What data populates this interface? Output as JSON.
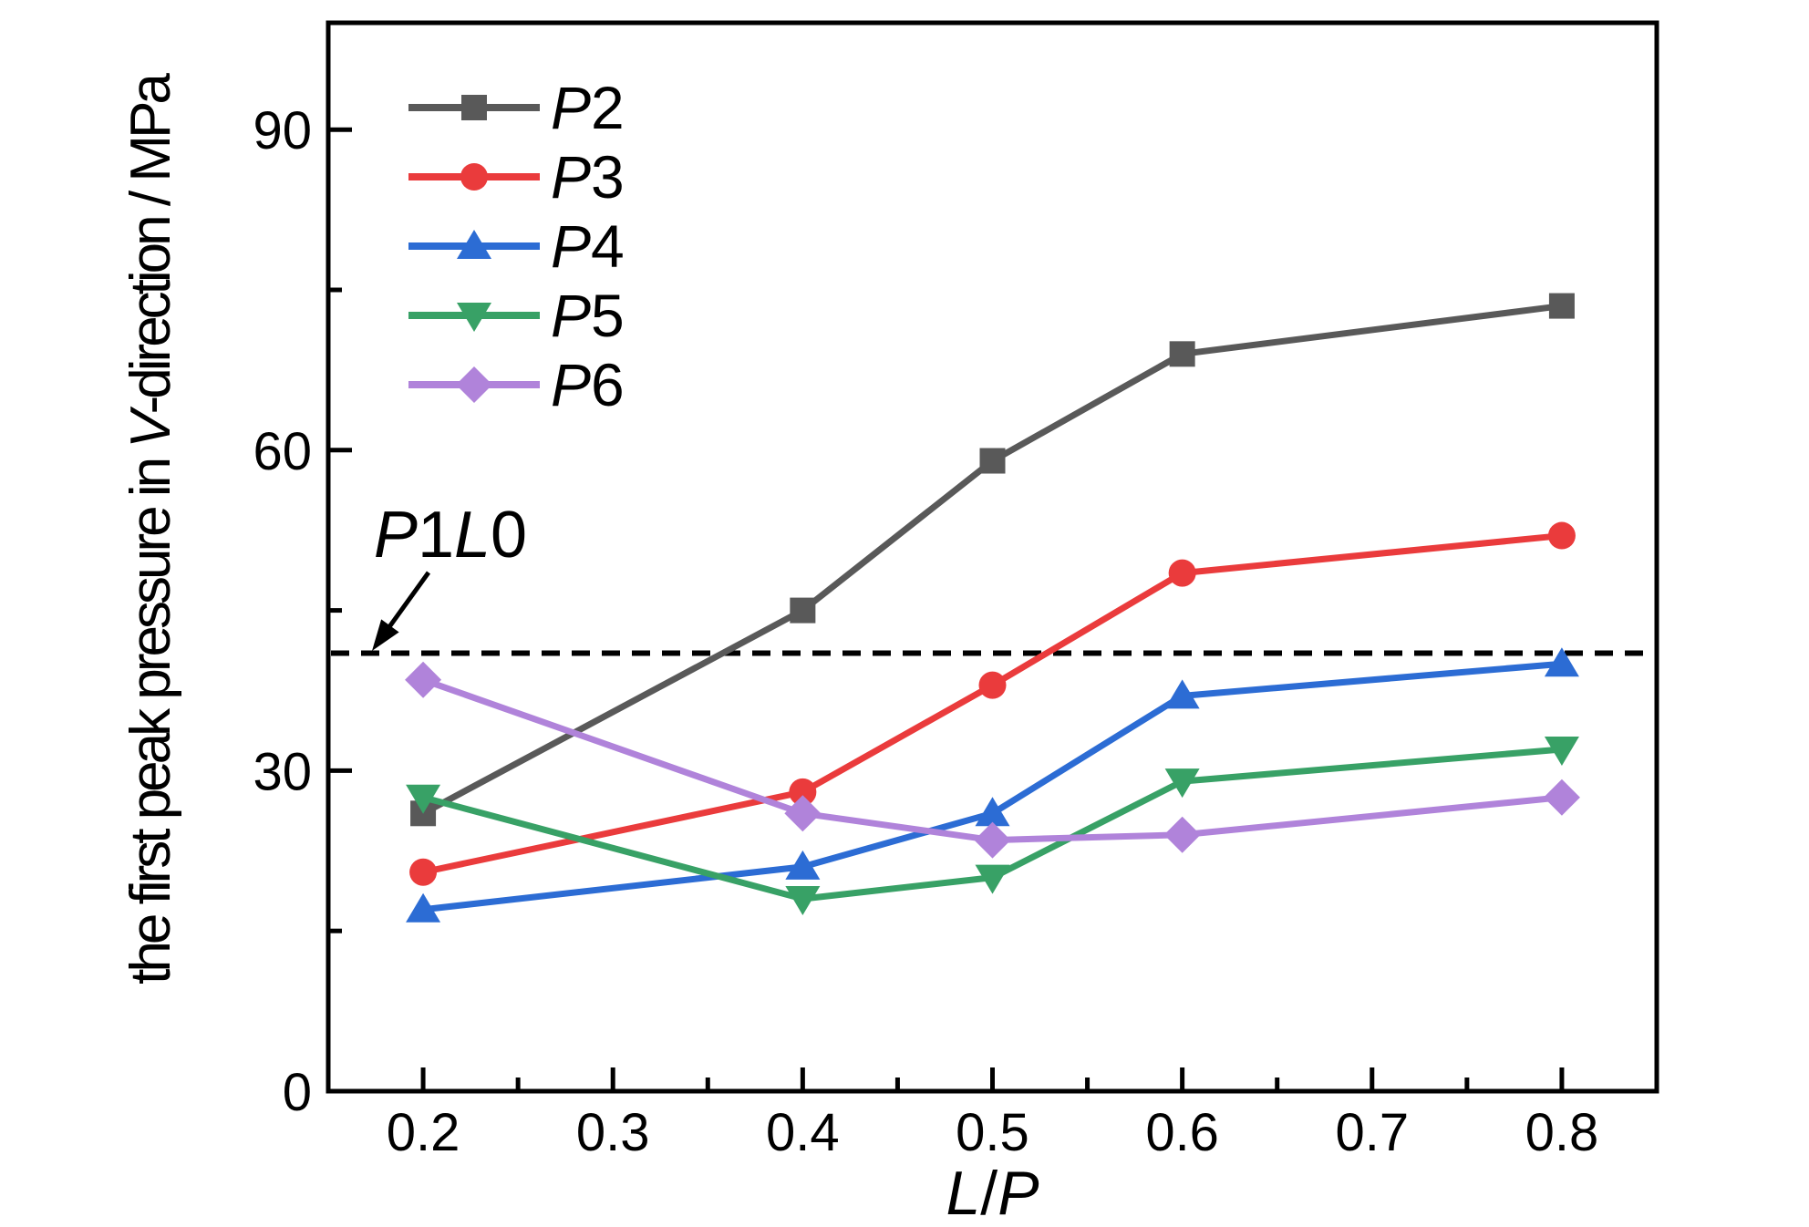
{
  "figure": {
    "background": "#ffffff",
    "axis_color": "#000000"
  },
  "chart_data": {
    "type": "line",
    "title": "",
    "xlabel": "L/P",
    "ylabel": "the first peak pressure in V-direction / MPa",
    "ylabel_segments": [
      {
        "text": "the first peak pressure in ",
        "italic": false
      },
      {
        "text": "V",
        "italic": true
      },
      {
        "text": "-direction / MPa",
        "italic": false
      }
    ],
    "x": [
      0.2,
      0.4,
      0.5,
      0.6,
      0.8
    ],
    "series": [
      {
        "name": "P2",
        "color": "#595959",
        "marker": "square",
        "values": [
          26,
          45,
          59,
          69,
          73.5
        ]
      },
      {
        "name": "P3",
        "color": "#ea3b3c",
        "marker": "circle",
        "values": [
          20.5,
          28,
          38,
          48.5,
          52
        ]
      },
      {
        "name": "P4",
        "color": "#2c6cd4",
        "marker": "triangle-up",
        "values": [
          17,
          21,
          26,
          37,
          40
        ]
      },
      {
        "name": "P5",
        "color": "#38a166",
        "marker": "triangle-down",
        "values": [
          27.5,
          18,
          20,
          29,
          32
        ]
      },
      {
        "name": "P6",
        "color": "#b083da",
        "marker": "diamond",
        "values": [
          38.5,
          26,
          23.5,
          24,
          27.5
        ]
      }
    ],
    "reference_line": {
      "value": 41,
      "label": "P1L0",
      "style": "dashed",
      "color": "#000000"
    },
    "annotation": {
      "label": "P1L0",
      "points_to": "reference-line"
    },
    "xlim": [
      0.15,
      0.85
    ],
    "ylim": [
      0,
      100
    ],
    "x_major_ticks": [
      0.2,
      0.3,
      0.4,
      0.5,
      0.6,
      0.7,
      0.8
    ],
    "x_tick_labels": [
      "0.2",
      "0.3",
      "0.4",
      "0.5",
      "0.6",
      "0.7",
      "0.8"
    ],
    "x_minor_ticks": [
      0.25,
      0.35,
      0.45,
      0.55,
      0.65,
      0.75
    ],
    "y_major_ticks": [
      0,
      30,
      60,
      90
    ],
    "y_tick_labels": [
      "0",
      "30",
      "60",
      "90"
    ],
    "y_minor_ticks": [
      15,
      45,
      75
    ],
    "grid": false,
    "legend_position": "upper-left-inside",
    "tick_direction": "in"
  }
}
